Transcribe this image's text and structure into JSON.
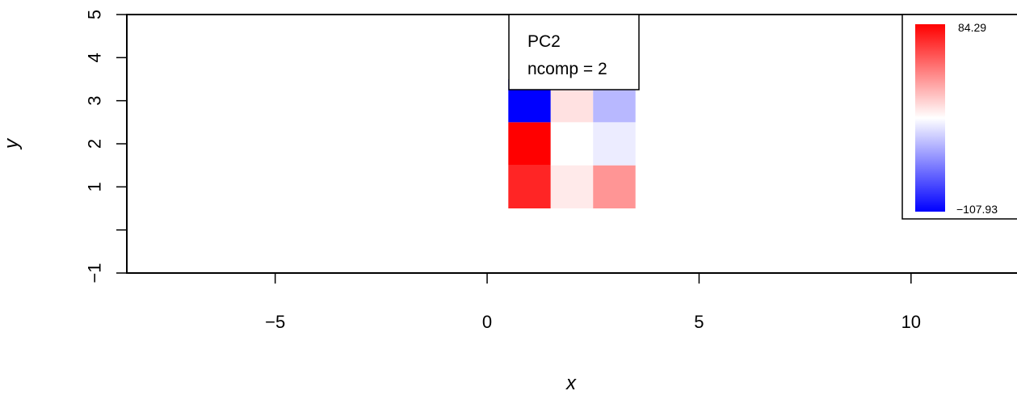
{
  "chart_data": {
    "type": "heatmap",
    "xlabel": "x",
    "ylabel": "y",
    "xlim": [
      -8.5,
      12.5
    ],
    "ylim": [
      -1,
      5
    ],
    "x_ticks": [
      -5,
      0,
      5,
      10
    ],
    "x_tick_labels": [
      "−5",
      "0",
      "5",
      "10"
    ],
    "y_ticks": [
      -1,
      0,
      1,
      2,
      3,
      4,
      5
    ],
    "y_tick_labels": [
      "−1",
      "",
      "1",
      "2",
      "3",
      "4",
      "5"
    ],
    "annotation": {
      "line1": "PC2",
      "line2": "ncomp = 2"
    },
    "colorbar": {
      "max_label": "84.29",
      "min_label": "−107.93",
      "max": 84.29,
      "min": -107.93,
      "colors": [
        "#0000ff",
        "#ffffff",
        "#ff0000"
      ]
    },
    "cells": [
      {
        "x": 1,
        "y": 1,
        "value": 72
      },
      {
        "x": 2,
        "y": 1,
        "value": 7
      },
      {
        "x": 3,
        "y": 1,
        "value": 35
      },
      {
        "x": 1,
        "y": 2,
        "value": 84.29
      },
      {
        "x": 2,
        "y": 2,
        "value": 0
      },
      {
        "x": 3,
        "y": 2,
        "value": -8
      },
      {
        "x": 1,
        "y": 3,
        "value": -107.93
      },
      {
        "x": 2,
        "y": 3,
        "value": 10
      },
      {
        "x": 3,
        "y": 3,
        "value": -30
      }
    ]
  }
}
